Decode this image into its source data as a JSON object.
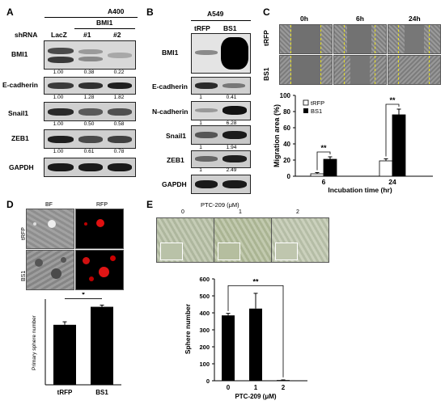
{
  "panelA": {
    "label": "A",
    "cell_line": "A400",
    "group_label": "BMI1",
    "shrna_label": "shRNA",
    "lanes": [
      "LacZ",
      "#1",
      "#2"
    ],
    "rows": [
      {
        "name": "BMI1",
        "values": [
          "1.00",
          "0.38",
          "0.22"
        ]
      },
      {
        "name": "E-cadherin",
        "values": [
          "1.00",
          "1.28",
          "1.82"
        ]
      },
      {
        "name": "Snail1",
        "values": [
          "1.00",
          "0.50",
          "0.58"
        ]
      },
      {
        "name": "ZEB1",
        "values": [
          "1.00",
          "0.61",
          "0.78"
        ]
      },
      {
        "name": "GAPDH",
        "values": []
      }
    ]
  },
  "panelB": {
    "label": "B",
    "cell_line": "A549",
    "lanes": [
      "tRFP",
      "BS1"
    ],
    "rows": [
      {
        "name": "BMI1",
        "values": []
      },
      {
        "name": "E-cadherin",
        "values": [
          "1",
          "0.41"
        ]
      },
      {
        "name": "N-cadherin",
        "values": [
          "1",
          "6.28"
        ]
      },
      {
        "name": "Snail1",
        "values": [
          "1",
          "1.94"
        ]
      },
      {
        "name": "ZEB1",
        "values": [
          "1",
          "2.49"
        ]
      },
      {
        "name": "GAPDH",
        "values": []
      }
    ]
  },
  "panelC": {
    "label": "C",
    "timepoints": [
      "0h",
      "6h",
      "24h"
    ],
    "row_labels": [
      "tRFP",
      "BS1"
    ]
  },
  "panelD": {
    "label": "D",
    "columns": [
      "BF",
      "RFP"
    ],
    "row_labels": [
      "tRFP",
      "BS1"
    ]
  },
  "panelE": {
    "label": "E",
    "title": "PTC-209 (μM)",
    "doses": [
      "0",
      "1",
      "2"
    ]
  },
  "chart_data": [
    {
      "id": "C",
      "type": "bar",
      "categories": [
        "6",
        "24"
      ],
      "series": [
        {
          "name": "tRFP",
          "values": [
            3,
            19
          ],
          "errors": [
            1.5,
            2.5
          ],
          "color": "#ffffff"
        },
        {
          "name": "BS1",
          "values": [
            21,
            76
          ],
          "errors": [
            3,
            7
          ],
          "color": "#000000"
        }
      ],
      "xlabel": "Incubation time (hr)",
      "ylabel": "Migration area (%)",
      "ylim": [
        0,
        100
      ],
      "yticks": [
        "0",
        "20",
        "40",
        "60",
        "80",
        "100"
      ],
      "legend": "top-left",
      "annotations": [
        "**",
        "**"
      ]
    },
    {
      "id": "D",
      "type": "bar",
      "categories": [
        "tRFP",
        "BS1"
      ],
      "values": [
        140,
        182
      ],
      "errors": [
        7,
        4
      ],
      "ylabel": "Primary sphere number",
      "ylim": [
        0,
        200
      ],
      "annotations": [
        "*"
      ]
    },
    {
      "id": "E",
      "type": "bar",
      "categories": [
        "0",
        "1",
        "2"
      ],
      "values": [
        385,
        425,
        4
      ],
      "errors": [
        12,
        90,
        1
      ],
      "xlabel": "PTC-209 (μM)",
      "ylabel": "Sphere number",
      "ylim": [
        0,
        600
      ],
      "yticks": [
        "0",
        "100",
        "200",
        "300",
        "400",
        "500",
        "600"
      ],
      "annotations": [
        "**"
      ]
    }
  ]
}
